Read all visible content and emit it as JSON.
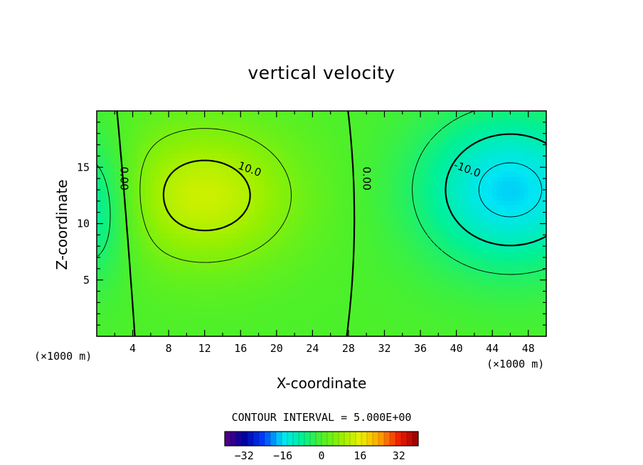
{
  "chart_data": {
    "type": "contour",
    "title": "vertical velocity",
    "xlabel": "X-coordinate",
    "ylabel": "Z-coordinate",
    "x_unit": "(×1000 m)",
    "z_unit": "(×1000 m)",
    "xlim": [
      0,
      50
    ],
    "zlim": [
      0,
      20
    ],
    "x_ticks": [
      4,
      8,
      12,
      16,
      20,
      24,
      28,
      32,
      36,
      40,
      44,
      48
    ],
    "z_ticks": [
      5,
      10,
      15
    ],
    "contour_interval_text": "CONTOUR INTERVAL = 5.000E+00",
    "contour_interval": 5,
    "contour_labels": [
      {
        "text": "0.00",
        "value": 0,
        "x": 3.0,
        "z": 14.0
      },
      {
        "text": "10.0",
        "value": 10,
        "x": 17.0,
        "z": 14.8
      },
      {
        "text": "0.00",
        "value": 0,
        "x": 30.0,
        "z": 14.0
      },
      {
        "text": "-10.0",
        "value": -10,
        "x": 41.2,
        "z": 14.8
      }
    ],
    "field_features": [
      {
        "kind": "max",
        "x": 12,
        "z": 12.5,
        "value": 13
      },
      {
        "kind": "min",
        "x": 46,
        "z": 13.0,
        "value": -16
      },
      {
        "kind": "min",
        "x": 0,
        "z": 11.5,
        "value": -11
      }
    ],
    "colorbar": {
      "range": [
        -40,
        40
      ],
      "tick_values": [
        -32,
        -16,
        0,
        16,
        32
      ],
      "tick_labels": [
        "−32",
        "−16",
        "0",
        "16",
        "32"
      ]
    }
  },
  "colors": {
    "field_neutral": "#4cf02a",
    "field_positive_peak": "#e7f200",
    "field_negative_peak": "#00f0f2"
  }
}
